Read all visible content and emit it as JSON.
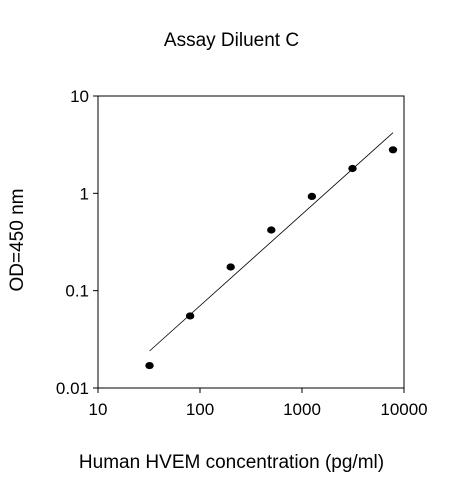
{
  "chart_data": {
    "type": "scatter",
    "title": "Assay Diluent C",
    "xlabel": "Human HVEM concentration (pg/ml)",
    "ylabel": "OD=450 nm",
    "x_scale": "log",
    "y_scale": "log",
    "xlim": [
      10,
      10000
    ],
    "ylim": [
      0.01,
      10
    ],
    "x_ticks": [
      10,
      100,
      1000,
      10000
    ],
    "x_tick_labels": [
      "10",
      "100",
      "1000",
      "10000"
    ],
    "y_ticks": [
      0.01,
      0.1,
      1,
      10
    ],
    "y_tick_labels": [
      "0.01",
      "0.1",
      "1",
      "10"
    ],
    "grid": false,
    "points": [
      {
        "x": 32,
        "y": 0.017
      },
      {
        "x": 80,
        "y": 0.055
      },
      {
        "x": 200,
        "y": 0.175
      },
      {
        "x": 500,
        "y": 0.42
      },
      {
        "x": 1250,
        "y": 0.93
      },
      {
        "x": 3125,
        "y": 1.8
      },
      {
        "x": 7800,
        "y": 2.8
      }
    ],
    "fit_line": [
      {
        "x": 32,
        "y": 0.024
      },
      {
        "x": 7800,
        "y": 4.2
      }
    ]
  }
}
